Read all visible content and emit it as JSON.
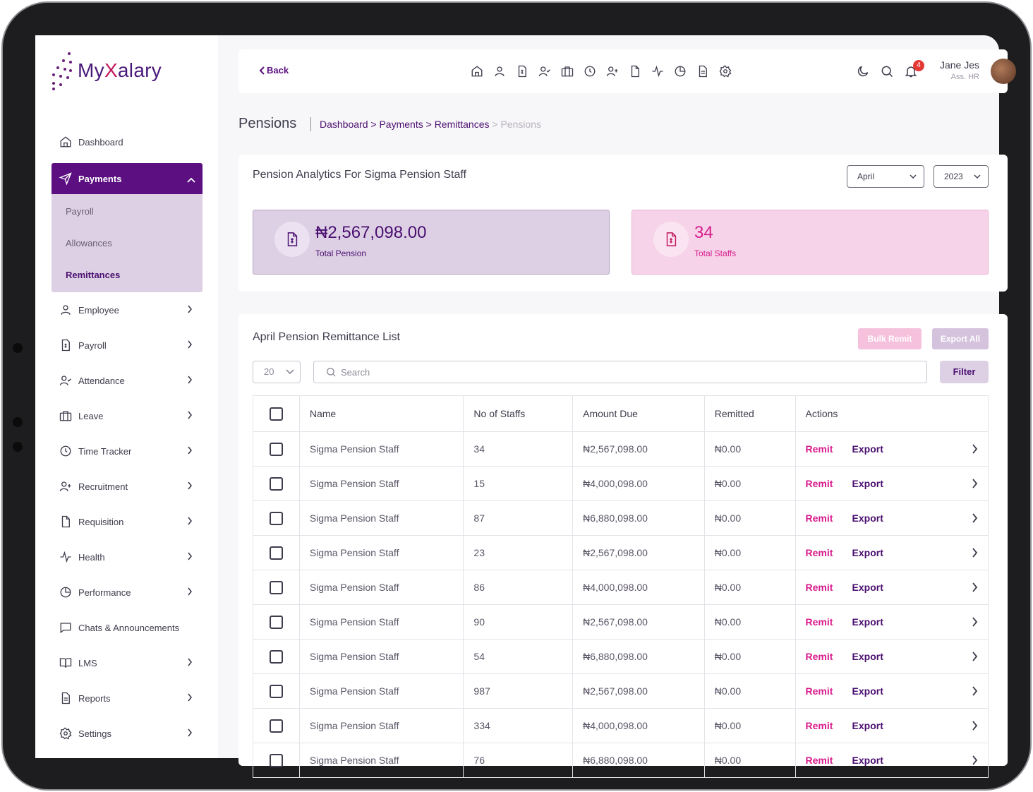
{
  "brand": {
    "name_pre": "My",
    "name_x": "X",
    "name_post": "alary"
  },
  "sidebar": {
    "items": [
      {
        "label": "Dashboard",
        "icon": "home-icon",
        "chevron": false
      },
      {
        "label": "Payments",
        "icon": "send-icon",
        "active": true
      },
      {
        "label": "Employee",
        "icon": "user-icon",
        "chevron": true
      },
      {
        "label": "Payroll",
        "icon": "payroll-doc-icon",
        "chevron": true
      },
      {
        "label": "Attendance",
        "icon": "user-check-icon",
        "chevron": true
      },
      {
        "label": "Leave",
        "icon": "briefcase-icon",
        "chevron": true
      },
      {
        "label": "Time Tracker",
        "icon": "clock-icon",
        "chevron": true
      },
      {
        "label": "Recruitment",
        "icon": "user-plus-icon",
        "chevron": true
      },
      {
        "label": "Requisition",
        "icon": "file-icon",
        "chevron": true
      },
      {
        "label": "Health",
        "icon": "activity-icon",
        "chevron": true
      },
      {
        "label": "Performance",
        "icon": "pie-chart-icon",
        "chevron": true
      },
      {
        "label": "Chats & Announcements",
        "icon": "chat-icon",
        "chevron": false
      },
      {
        "label": "LMS",
        "icon": "book-icon",
        "chevron": true
      },
      {
        "label": "Reports",
        "icon": "report-icon",
        "chevron": true
      },
      {
        "label": "Settings",
        "icon": "gear-icon",
        "chevron": true
      }
    ],
    "payments_sub": [
      "Payroll",
      "Allowances",
      "Remittances"
    ],
    "payments_sub_selected": "Remittances"
  },
  "topbar": {
    "back_label": "Back",
    "notification_count": "4",
    "user_name": "Jane Jes",
    "user_role": "Ass. HR"
  },
  "page": {
    "title": "Pensions",
    "breadcrumb": [
      "Dashboard",
      "Payments",
      "Remittances"
    ],
    "breadcrumb_current": "Pensions"
  },
  "analytics": {
    "title": "Pension Analytics For Sigma Pension Staff",
    "month": "April",
    "year": "2023",
    "total_pension_value": "₦2,567,098.00",
    "total_pension_label": "Total Pension",
    "total_staffs_value": "34",
    "total_staffs_label": "Total Staffs"
  },
  "list": {
    "title": "April Pension Remittance List",
    "bulk_remit_label": "Bulk Remit",
    "export_all_label": "Export All",
    "page_size": "20",
    "search_placeholder": "Search",
    "filter_label": "Filter",
    "columns": [
      "Name",
      "No of Staffs",
      "Amount Due",
      "Remitted",
      "Actions"
    ],
    "remit_label": "Remit",
    "export_label": "Export",
    "rows": [
      {
        "name": "Sigma Pension Staff",
        "staffs": "34",
        "due": "₦2,567,098.00",
        "remitted": "₦0.00"
      },
      {
        "name": "Sigma Pension Staff",
        "staffs": "15",
        "due": "₦4,000,098.00",
        "remitted": "₦0.00"
      },
      {
        "name": "Sigma Pension Staff",
        "staffs": "87",
        "due": "₦6,880,098.00",
        "remitted": "₦0.00"
      },
      {
        "name": "Sigma Pension Staff",
        "staffs": "23",
        "due": "₦2,567,098.00",
        "remitted": "₦0.00"
      },
      {
        "name": "Sigma Pension Staff",
        "staffs": "86",
        "due": "₦4,000,098.00",
        "remitted": "₦0.00"
      },
      {
        "name": "Sigma Pension Staff",
        "staffs": "90",
        "due": "₦2,567,098.00",
        "remitted": "₦0.00"
      },
      {
        "name": "Sigma Pension Staff",
        "staffs": "54",
        "due": "₦6,880,098.00",
        "remitted": "₦0.00"
      },
      {
        "name": "Sigma Pension Staff",
        "staffs": "987",
        "due": "₦2,567,098.00",
        "remitted": "₦0.00"
      },
      {
        "name": "Sigma Pension Staff",
        "staffs": "334",
        "due": "₦4,000,098.00",
        "remitted": "₦0.00"
      },
      {
        "name": "Sigma Pension Staff",
        "staffs": "76",
        "due": "₦6,880,098.00",
        "remitted": "₦0.00"
      }
    ]
  },
  "colors": {
    "primary": "#5b0f80",
    "accent": "#d81b8c",
    "sub_bg": "#ddd0e4",
    "pink_bg": "#f6d3e8"
  }
}
